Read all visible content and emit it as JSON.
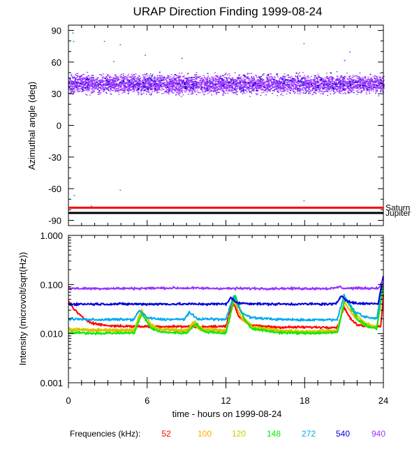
{
  "chart_data": [
    {
      "panel": "top",
      "type": "scatter",
      "title": "URAP Direction Finding  1999-08-24",
      "ylabel": "Azimuthal angle (deg)",
      "xlim": [
        0,
        24
      ],
      "ylim": [
        -95,
        95
      ],
      "yticks": [
        90,
        60,
        30,
        0,
        -30,
        -60,
        -90
      ],
      "grid": false,
      "scatter_band": {
        "center": 39,
        "spread": 7,
        "x_start": 0,
        "x_end": 24,
        "color": "#9933ff",
        "color_alt": "#0000cc"
      },
      "outliers": [
        {
          "x": 0.3,
          "y": 88,
          "color": "#00aacc"
        },
        {
          "x": 0.35,
          "y": 80,
          "color": "#00aacc"
        },
        {
          "x": 2.7,
          "y": 80,
          "color": "#00aacc"
        },
        {
          "x": 3.4,
          "y": 61,
          "color": "#00aacc"
        },
        {
          "x": 3.9,
          "y": 77,
          "color": "#00aacc"
        },
        {
          "x": 5.8,
          "y": 67,
          "color": "#00aacc"
        },
        {
          "x": 8.6,
          "y": 64,
          "color": "#9933ff"
        },
        {
          "x": 17.9,
          "y": 78,
          "color": "#00cc88"
        },
        {
          "x": 21.4,
          "y": 70,
          "color": "#9933ff"
        },
        {
          "x": 21.0,
          "y": 62,
          "color": "#9933ff"
        },
        {
          "x": 0.4,
          "y": -66,
          "color": "#00aacc"
        },
        {
          "x": 3.9,
          "y": -61,
          "color": "#00aacc"
        },
        {
          "x": 1.7,
          "y": -76,
          "color": "#00aacc"
        },
        {
          "x": 17.9,
          "y": -71,
          "color": "#00aacc"
        }
      ],
      "reference_lines": [
        {
          "name": "Saturn",
          "y": -78,
          "color": "#ff0000"
        },
        {
          "name": "Jupiter",
          "y": -83,
          "color": "#000000"
        }
      ]
    },
    {
      "panel": "bottom",
      "type": "line",
      "ylabel": "Intensity (microvolt/sqrt(Hz))",
      "xlabel": "time - hours on 1999-08-24",
      "xlim": [
        0,
        24
      ],
      "xticks": [
        0,
        6,
        12,
        18,
        24
      ],
      "yscale": "log",
      "ylim": [
        0.001,
        1.0
      ],
      "yticks": [
        "1.000",
        "0.100",
        "0.010",
        "0.001"
      ],
      "grid": false,
      "legend": {
        "label": "Frequencies (kHz):",
        "placement": "bottom"
      },
      "series": [
        {
          "name": "52",
          "color": "#ff0000",
          "base": 0.0135,
          "points": [
            [
              0,
              0.045
            ],
            [
              0.5,
              0.03
            ],
            [
              1,
              0.022
            ],
            [
              1.5,
              0.018
            ],
            [
              2,
              0.016
            ],
            [
              3,
              0.0145
            ],
            [
              5,
              0.014
            ],
            [
              8,
              0.014
            ],
            [
              10,
              0.0138
            ],
            [
              12,
              0.014
            ],
            [
              12.5,
              0.045
            ],
            [
              13,
              0.022
            ],
            [
              14,
              0.0145
            ],
            [
              16,
              0.0135
            ],
            [
              18,
              0.0135
            ],
            [
              20.5,
              0.0135
            ],
            [
              21,
              0.035
            ],
            [
              21.5,
              0.02
            ],
            [
              22,
              0.015
            ],
            [
              23,
              0.014
            ],
            [
              23.8,
              0.014
            ],
            [
              24,
              0.06
            ]
          ]
        },
        {
          "name": "100",
          "color": "#ffaa00",
          "base": 0.011,
          "points": [
            [
              0,
              0.012
            ],
            [
              2,
              0.0115
            ],
            [
              5,
              0.0115
            ],
            [
              5.5,
              0.028
            ],
            [
              6.2,
              0.014
            ],
            [
              7,
              0.012
            ],
            [
              9,
              0.011
            ],
            [
              9.5,
              0.016
            ],
            [
              10,
              0.012
            ],
            [
              12,
              0.011
            ],
            [
              12.6,
              0.05
            ],
            [
              13.2,
              0.02
            ],
            [
              14,
              0.013
            ],
            [
              16,
              0.011
            ],
            [
              18,
              0.0105
            ],
            [
              20.5,
              0.011
            ],
            [
              21,
              0.045
            ],
            [
              21.8,
              0.022
            ],
            [
              22.5,
              0.015
            ],
            [
              23.5,
              0.013
            ],
            [
              24,
              0.09
            ]
          ]
        },
        {
          "name": "120",
          "color": "#cccc00",
          "base": 0.0115,
          "points": [
            [
              0,
              0.0125
            ],
            [
              2,
              0.012
            ],
            [
              5,
              0.012
            ],
            [
              5.6,
              0.03
            ],
            [
              6.3,
              0.015
            ],
            [
              7,
              0.0125
            ],
            [
              9,
              0.0118
            ],
            [
              9.6,
              0.018
            ],
            [
              10.2,
              0.0125
            ],
            [
              12,
              0.0118
            ],
            [
              12.7,
              0.055
            ],
            [
              13.3,
              0.022
            ],
            [
              14,
              0.014
            ],
            [
              16,
              0.0118
            ],
            [
              18,
              0.0112
            ],
            [
              20.5,
              0.0118
            ],
            [
              21.1,
              0.05
            ],
            [
              21.9,
              0.025
            ],
            [
              22.6,
              0.016
            ],
            [
              23.5,
              0.014
            ],
            [
              24,
              0.1
            ]
          ]
        },
        {
          "name": "148",
          "color": "#00ee00",
          "base": 0.01,
          "points": [
            [
              0,
              0.0105
            ],
            [
              2,
              0.0102
            ],
            [
              5,
              0.0103
            ],
            [
              5.6,
              0.025
            ],
            [
              6.3,
              0.013
            ],
            [
              7,
              0.0108
            ],
            [
              9,
              0.0102
            ],
            [
              9.7,
              0.016
            ],
            [
              10.3,
              0.011
            ],
            [
              12,
              0.0102
            ],
            [
              12.7,
              0.06
            ],
            [
              13.4,
              0.02
            ],
            [
              14,
              0.0125
            ],
            [
              16,
              0.0105
            ],
            [
              18,
              0.0102
            ],
            [
              20.5,
              0.0105
            ],
            [
              21.1,
              0.055
            ],
            [
              22,
              0.02
            ],
            [
              22.8,
              0.014
            ],
            [
              23.5,
              0.0125
            ],
            [
              24,
              0.11
            ]
          ]
        },
        {
          "name": "272",
          "color": "#00aaee",
          "base": 0.019,
          "points": [
            [
              0,
              0.02
            ],
            [
              2,
              0.0192
            ],
            [
              5,
              0.0195
            ],
            [
              5.4,
              0.03
            ],
            [
              6,
              0.021
            ],
            [
              7,
              0.0195
            ],
            [
              8.8,
              0.0195
            ],
            [
              9.2,
              0.027
            ],
            [
              9.8,
              0.02
            ],
            [
              12,
              0.0195
            ],
            [
              12.6,
              0.06
            ],
            [
              13.2,
              0.026
            ],
            [
              14,
              0.021
            ],
            [
              16,
              0.0195
            ],
            [
              18,
              0.019
            ],
            [
              20.5,
              0.0195
            ],
            [
              21,
              0.06
            ],
            [
              21.8,
              0.028
            ],
            [
              22.5,
              0.022
            ],
            [
              23.5,
              0.02
            ],
            [
              24,
              0.13
            ]
          ]
        },
        {
          "name": "540",
          "color": "#0000dd",
          "base": 0.04,
          "points": [
            [
              0,
              0.04
            ],
            [
              3,
              0.04
            ],
            [
              6,
              0.04
            ],
            [
              9,
              0.04
            ],
            [
              12,
              0.04
            ],
            [
              12.4,
              0.055
            ],
            [
              12.8,
              0.042
            ],
            [
              15,
              0.04
            ],
            [
              18,
              0.04
            ],
            [
              20.4,
              0.04
            ],
            [
              20.8,
              0.06
            ],
            [
              21.3,
              0.045
            ],
            [
              22,
              0.041
            ],
            [
              23.6,
              0.041
            ],
            [
              24,
              0.15
            ]
          ]
        },
        {
          "name": "940",
          "color": "#9933ff",
          "base": 0.083,
          "points": [
            [
              0,
              0.083
            ],
            [
              4,
              0.083
            ],
            [
              8,
              0.085
            ],
            [
              12,
              0.083
            ],
            [
              16,
              0.083
            ],
            [
              19,
              0.083
            ],
            [
              20.2,
              0.083
            ],
            [
              20.6,
              0.09
            ],
            [
              21,
              0.084
            ],
            [
              23.6,
              0.084
            ],
            [
              24,
              0.12
            ]
          ]
        }
      ]
    }
  ]
}
